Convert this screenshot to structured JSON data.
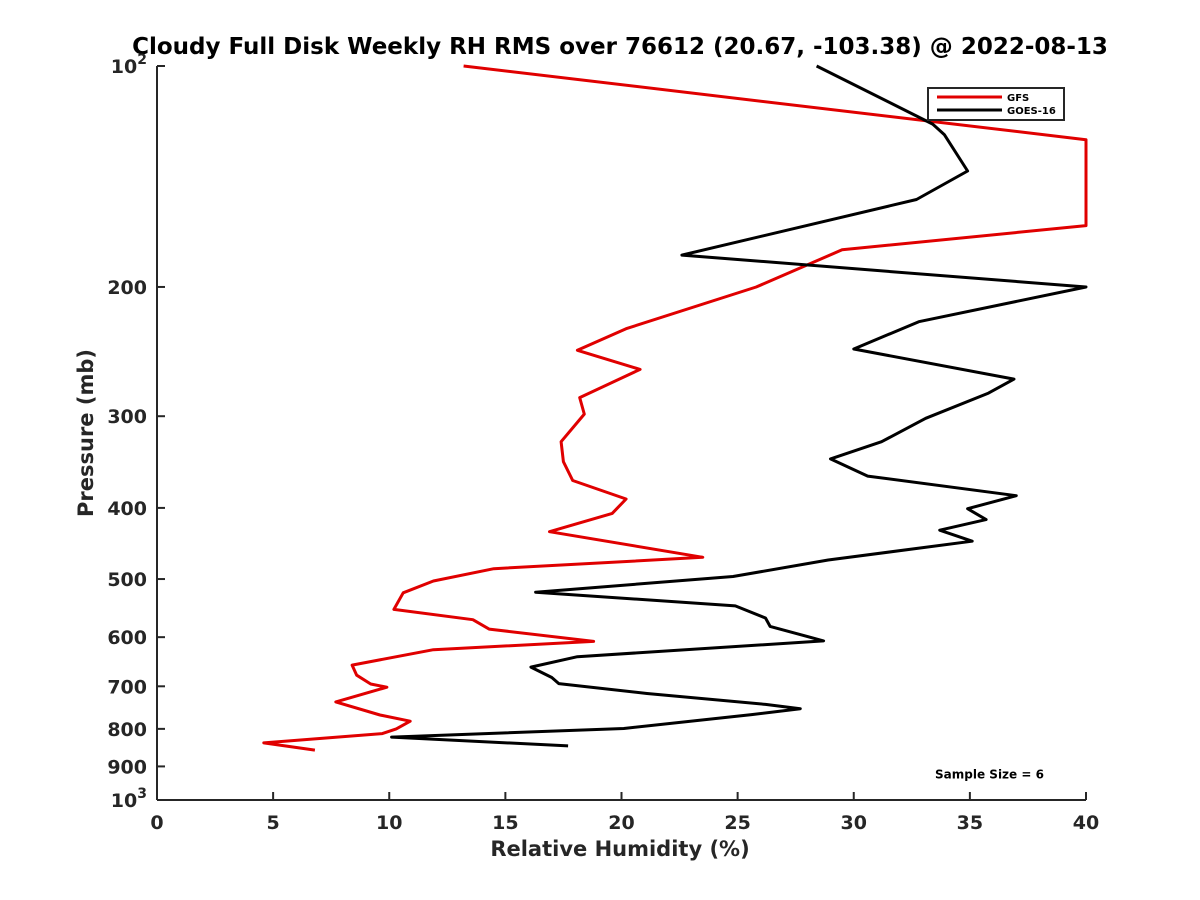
{
  "chart_data": {
    "type": "line",
    "title": "Cloudy Full Disk Weekly RH RMS over 76612 (20.67, -103.38) @ 2022-08-13",
    "xlabel": "Relative Humidity (%)",
    "ylabel": "Pressure (mb)",
    "xlim": [
      0,
      40
    ],
    "ylim": [
      100,
      1000
    ],
    "yscale": "log",
    "y_reversed": true,
    "grid": false,
    "x_ticks": [
      0,
      5,
      10,
      15,
      20,
      25,
      30,
      35,
      40
    ],
    "x_tick_labels": [
      "0",
      "5",
      "10",
      "15",
      "20",
      "25",
      "30",
      "35",
      "40"
    ],
    "y_ticks": [
      {
        "value": 100,
        "base": "10",
        "exp": "2"
      },
      {
        "value": 200,
        "label": "200"
      },
      {
        "value": 300,
        "label": "300"
      },
      {
        "value": 400,
        "label": "400"
      },
      {
        "value": 500,
        "label": "500"
      },
      {
        "value": 600,
        "label": "600"
      },
      {
        "value": 700,
        "label": "700"
      },
      {
        "value": 800,
        "label": "800"
      },
      {
        "value": 900,
        "label": "900"
      },
      {
        "value": 1000,
        "base": "10",
        "exp": "3"
      }
    ],
    "legend_position": "top-right",
    "series": [
      {
        "name": "GFS",
        "color": "#e00000",
        "points": [
          [
            13.2,
            100
          ],
          [
            40.0,
            126
          ],
          [
            40.0,
            165
          ],
          [
            29.5,
            178
          ],
          [
            25.8,
            200
          ],
          [
            20.2,
            228
          ],
          [
            18.1,
            244
          ],
          [
            20.8,
            259
          ],
          [
            18.2,
            283
          ],
          [
            18.4,
            298
          ],
          [
            17.4,
            325
          ],
          [
            17.5,
            346
          ],
          [
            17.9,
            367
          ],
          [
            20.2,
            389
          ],
          [
            19.6,
            407
          ],
          [
            16.9,
            431
          ],
          [
            23.5,
            467
          ],
          [
            14.5,
            484
          ],
          [
            11.9,
            503
          ],
          [
            10.6,
            522
          ],
          [
            10.2,
            550
          ],
          [
            13.6,
            568
          ],
          [
            14.3,
            585
          ],
          [
            18.8,
            608
          ],
          [
            11.9,
            624
          ],
          [
            8.4,
            655
          ],
          [
            8.6,
            676
          ],
          [
            9.2,
            695
          ],
          [
            9.9,
            702
          ],
          [
            7.7,
            735
          ],
          [
            9.6,
            766
          ],
          [
            10.9,
            781
          ],
          [
            10.3,
            800
          ],
          [
            9.7,
            812
          ],
          [
            4.6,
            836
          ],
          [
            6.8,
            855
          ]
        ]
      },
      {
        "name": "GOES-16",
        "color": "#000000",
        "points": [
          [
            28.4,
            100
          ],
          [
            33.4,
            120
          ],
          [
            33.9,
            124
          ],
          [
            34.9,
            139
          ],
          [
            32.7,
            152
          ],
          [
            22.6,
            181
          ],
          [
            40.0,
            200
          ],
          [
            32.8,
            223
          ],
          [
            30.0,
            243
          ],
          [
            36.9,
            267
          ],
          [
            35.8,
            279
          ],
          [
            33.1,
            302
          ],
          [
            31.2,
            325
          ],
          [
            29.0,
            343
          ],
          [
            30.6,
            362
          ],
          [
            37.0,
            385
          ],
          [
            34.9,
            401
          ],
          [
            35.7,
            415
          ],
          [
            33.7,
            429
          ],
          [
            35.1,
            444
          ],
          [
            28.9,
            471
          ],
          [
            24.8,
            496
          ],
          [
            16.3,
            521
          ],
          [
            24.9,
            544
          ],
          [
            26.2,
            565
          ],
          [
            26.4,
            580
          ],
          [
            28.7,
            607
          ],
          [
            18.1,
            638
          ],
          [
            16.1,
            659
          ],
          [
            17.0,
            681
          ],
          [
            17.3,
            694
          ],
          [
            21.1,
            716
          ],
          [
            26.2,
            741
          ],
          [
            27.7,
            751
          ],
          [
            25.6,
            765
          ],
          [
            20.1,
            799
          ],
          [
            10.1,
            821
          ],
          [
            17.7,
            844
          ]
        ]
      }
    ],
    "annotations": [
      {
        "text": "Sample Size = 6",
        "x": 33.5,
        "y": 935
      }
    ]
  }
}
